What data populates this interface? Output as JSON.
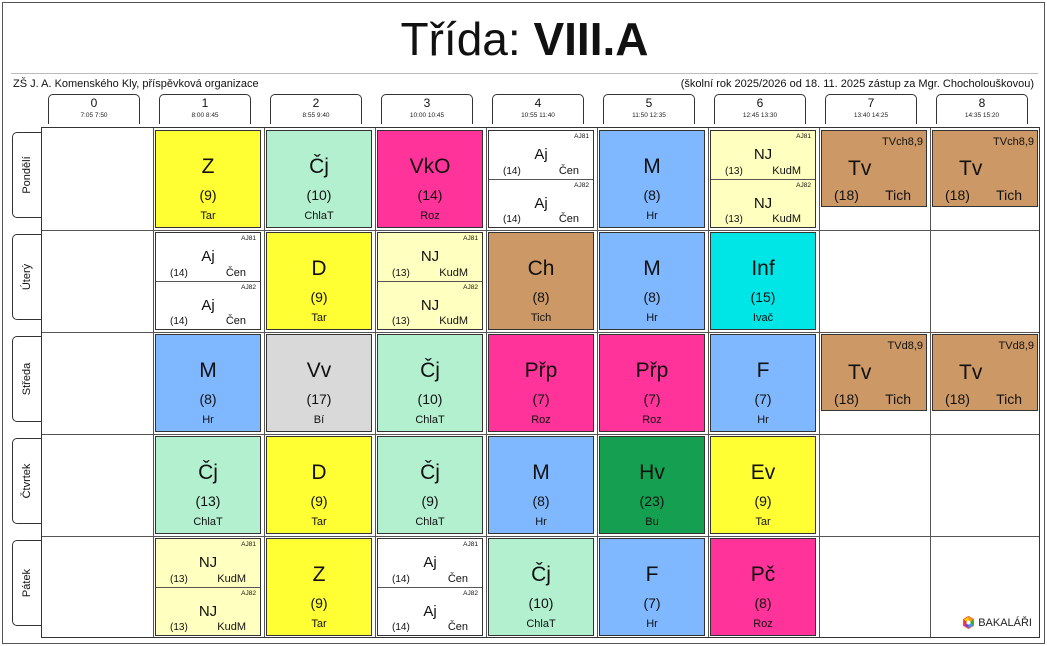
{
  "title": {
    "prefix": "Třída:",
    "class_name": "VIII.A"
  },
  "school": "ZŠ J. A. Komenského Kly, příspěvková organizace",
  "year_info": "(školní rok 2025/2026 od 18. 11. 2025 zástup za Mgr. Chocholouškovou)",
  "hours": [
    {
      "num": "0",
      "time": "7:05  7:50"
    },
    {
      "num": "1",
      "time": "8:00  8:45"
    },
    {
      "num": "2",
      "time": "8:55  9:40"
    },
    {
      "num": "3",
      "time": "10:00 10:45"
    },
    {
      "num": "4",
      "time": "10:55 11:40"
    },
    {
      "num": "5",
      "time": "11:50 12:35"
    },
    {
      "num": "6",
      "time": "12:45 13:30"
    },
    {
      "num": "7",
      "time": "13:40 14:25"
    },
    {
      "num": "8",
      "time": "14:35 15:20"
    }
  ],
  "days": [
    "Pondělí",
    "Úterý",
    "Středa",
    "Čtvrtek",
    "Pátek"
  ],
  "colors": {
    "yellow": "#ffff33",
    "mint": "#b3f0d0",
    "pink": "#ff3399",
    "blue": "#80b8ff",
    "paleyellow": "#ffffbf",
    "brown": "#cc9966",
    "cyan": "#00e5e5",
    "grey": "#d9d9d9",
    "green": "#14a050",
    "white": "#ffffff"
  },
  "lessons": [
    {
      "day": 0,
      "hour": 1,
      "type": "single",
      "color": "yellow",
      "subject": "Z",
      "room": "(9)",
      "teacher": "Tar"
    },
    {
      "day": 0,
      "hour": 2,
      "type": "single",
      "color": "mint",
      "subject": "Čj",
      "room": "(10)",
      "teacher": "ChlaT"
    },
    {
      "day": 0,
      "hour": 3,
      "type": "single",
      "color": "pink",
      "subject": "VkO",
      "room": "(14)",
      "teacher": "Roz"
    },
    {
      "day": 0,
      "hour": 4,
      "type": "split",
      "color": "white",
      "halves": [
        {
          "group": "AJ81",
          "subject": "Aj",
          "room": "(14)",
          "teacher": "Čen"
        },
        {
          "group": "AJ82",
          "subject": "Aj",
          "room": "(14)",
          "teacher": "Čen"
        }
      ]
    },
    {
      "day": 0,
      "hour": 5,
      "type": "single",
      "color": "blue",
      "subject": "M",
      "room": "(8)",
      "teacher": "Hr"
    },
    {
      "day": 0,
      "hour": 6,
      "type": "split",
      "color": "paleyellow",
      "halves": [
        {
          "group": "AJ81",
          "subject": "NJ",
          "room": "(13)",
          "teacher": "KudM"
        },
        {
          "group": "AJ82",
          "subject": "NJ",
          "room": "(13)",
          "teacher": "KudM"
        }
      ]
    },
    {
      "day": 0,
      "hour": 7,
      "type": "tv",
      "color": "brown",
      "group": "TVch8,9",
      "subject": "Tv",
      "room": "(18)",
      "teacher": "Tich"
    },
    {
      "day": 0,
      "hour": 8,
      "type": "tv",
      "color": "brown",
      "group": "TVch8,9",
      "subject": "Tv",
      "room": "(18)",
      "teacher": "Tich"
    },
    {
      "day": 1,
      "hour": 1,
      "type": "split",
      "color": "white",
      "halves": [
        {
          "group": "AJ81",
          "subject": "Aj",
          "room": "(14)",
          "teacher": "Čen"
        },
        {
          "group": "AJ82",
          "subject": "Aj",
          "room": "(14)",
          "teacher": "Čen"
        }
      ]
    },
    {
      "day": 1,
      "hour": 2,
      "type": "single",
      "color": "yellow",
      "subject": "D",
      "room": "(9)",
      "teacher": "Tar"
    },
    {
      "day": 1,
      "hour": 3,
      "type": "split",
      "color": "paleyellow",
      "halves": [
        {
          "group": "AJ81",
          "subject": "NJ",
          "room": "(13)",
          "teacher": "KudM"
        },
        {
          "group": "AJ82",
          "subject": "NJ",
          "room": "(13)",
          "teacher": "KudM"
        }
      ]
    },
    {
      "day": 1,
      "hour": 4,
      "type": "single",
      "color": "brown",
      "subject": "Ch",
      "room": "(8)",
      "teacher": "Tich"
    },
    {
      "day": 1,
      "hour": 5,
      "type": "single",
      "color": "blue",
      "subject": "M",
      "room": "(8)",
      "teacher": "Hr"
    },
    {
      "day": 1,
      "hour": 6,
      "type": "single",
      "color": "cyan",
      "subject": "Inf",
      "room": "(15)",
      "teacher": "Ivač"
    },
    {
      "day": 2,
      "hour": 1,
      "type": "single",
      "color": "blue",
      "subject": "M",
      "room": "(8)",
      "teacher": "Hr"
    },
    {
      "day": 2,
      "hour": 2,
      "type": "single",
      "color": "grey",
      "subject": "Vv",
      "room": "(17)",
      "teacher": "Bí"
    },
    {
      "day": 2,
      "hour": 3,
      "type": "single",
      "color": "mint",
      "subject": "Čj",
      "room": "(10)",
      "teacher": "ChlaT"
    },
    {
      "day": 2,
      "hour": 4,
      "type": "single",
      "color": "pink",
      "subject": "Přp",
      "room": "(7)",
      "teacher": "Roz"
    },
    {
      "day": 2,
      "hour": 5,
      "type": "single",
      "color": "pink",
      "subject": "Přp",
      "room": "(7)",
      "teacher": "Roz"
    },
    {
      "day": 2,
      "hour": 6,
      "type": "single",
      "color": "blue",
      "subject": "F",
      "room": "(7)",
      "teacher": "Hr"
    },
    {
      "day": 2,
      "hour": 7,
      "type": "tv",
      "color": "brown",
      "group": "TVd8,9",
      "subject": "Tv",
      "room": "(18)",
      "teacher": "Tich"
    },
    {
      "day": 2,
      "hour": 8,
      "type": "tv",
      "color": "brown",
      "group": "TVd8,9",
      "subject": "Tv",
      "room": "(18)",
      "teacher": "Tich"
    },
    {
      "day": 3,
      "hour": 1,
      "type": "single",
      "color": "mint",
      "subject": "Čj",
      "room": "(13)",
      "teacher": "ChlaT"
    },
    {
      "day": 3,
      "hour": 2,
      "type": "single",
      "color": "yellow",
      "subject": "D",
      "room": "(9)",
      "teacher": "Tar"
    },
    {
      "day": 3,
      "hour": 3,
      "type": "single",
      "color": "mint",
      "subject": "Čj",
      "room": "(9)",
      "teacher": "ChlaT"
    },
    {
      "day": 3,
      "hour": 4,
      "type": "single",
      "color": "blue",
      "subject": "M",
      "room": "(8)",
      "teacher": "Hr"
    },
    {
      "day": 3,
      "hour": 5,
      "type": "single",
      "color": "green",
      "subject": "Hv",
      "room": "(23)",
      "teacher": "Bu"
    },
    {
      "day": 3,
      "hour": 6,
      "type": "single",
      "color": "yellow",
      "subject": "Ev",
      "room": "(9)",
      "teacher": "Tar"
    },
    {
      "day": 4,
      "hour": 1,
      "type": "split",
      "color": "paleyellow",
      "halves": [
        {
          "group": "AJ81",
          "subject": "NJ",
          "room": "(13)",
          "teacher": "KudM"
        },
        {
          "group": "AJ82",
          "subject": "NJ",
          "room": "(13)",
          "teacher": "KudM"
        }
      ]
    },
    {
      "day": 4,
      "hour": 2,
      "type": "single",
      "color": "yellow",
      "subject": "Z",
      "room": "(9)",
      "teacher": "Tar"
    },
    {
      "day": 4,
      "hour": 3,
      "type": "split",
      "color": "white",
      "halves": [
        {
          "group": "AJ81",
          "subject": "Aj",
          "room": "(14)",
          "teacher": "Čen"
        },
        {
          "group": "AJ82",
          "subject": "Aj",
          "room": "(14)",
          "teacher": "Čen"
        }
      ]
    },
    {
      "day": 4,
      "hour": 4,
      "type": "single",
      "color": "mint",
      "subject": "Čj",
      "room": "(10)",
      "teacher": "ChlaT"
    },
    {
      "day": 4,
      "hour": 5,
      "type": "single",
      "color": "blue",
      "subject": "F",
      "room": "(7)",
      "teacher": "Hr"
    },
    {
      "day": 4,
      "hour": 6,
      "type": "single",
      "color": "pink",
      "subject": "Pč",
      "room": "(8)",
      "teacher": "Roz"
    }
  ],
  "logo": {
    "text": "BAKALÁŘI",
    "icon": "bakalari-logo-icon"
  }
}
